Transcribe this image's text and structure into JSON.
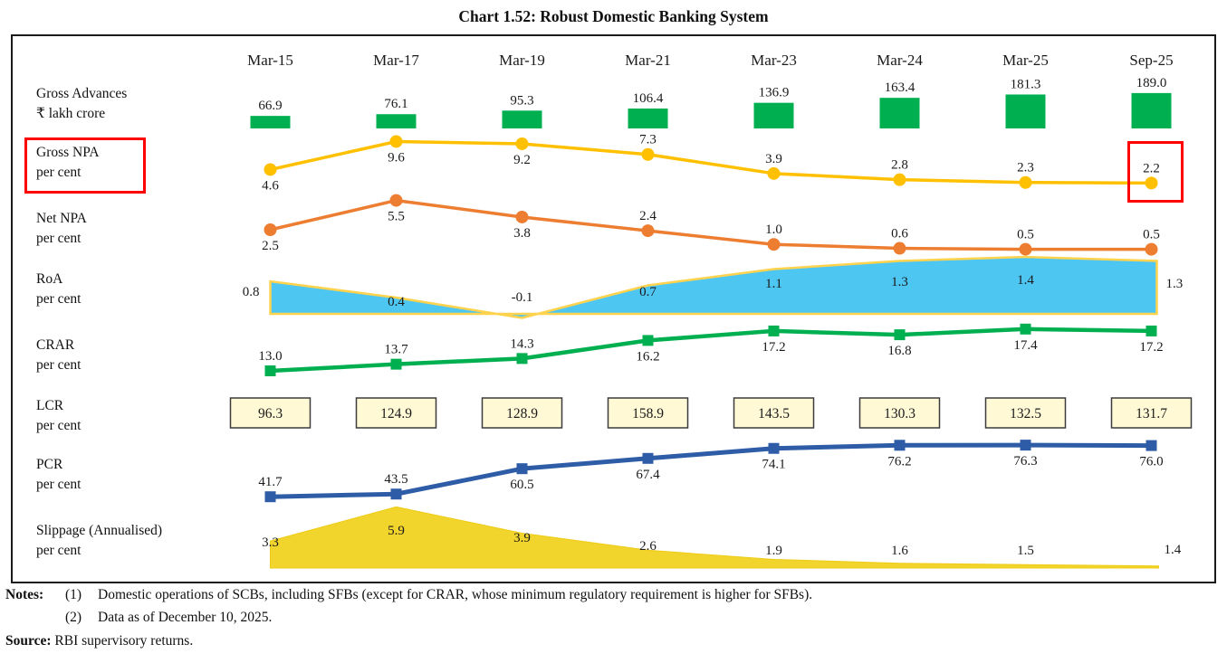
{
  "title": "Chart 1.52: Robust Domestic Banking System",
  "chart_data": {
    "type": "line",
    "categories": [
      "Mar-15",
      "Mar-17",
      "Mar-19",
      "Mar-21",
      "Mar-23",
      "Mar-24",
      "Mar-25",
      "Sep-25"
    ],
    "series": [
      {
        "id": "gross_advances",
        "name": "Gross Advances",
        "unit": "₹ lakh crore",
        "type": "bar",
        "color": "#00B050",
        "values": [
          66.9,
          76.1,
          95.3,
          106.4,
          136.9,
          163.4,
          181.3,
          189.0
        ]
      },
      {
        "id": "gross_npa",
        "name": "Gross NPA",
        "unit": "per cent",
        "type": "line",
        "marker": "circle",
        "color": "#FFC000",
        "values": [
          4.6,
          9.6,
          9.2,
          7.3,
          3.9,
          2.8,
          2.3,
          2.2
        ]
      },
      {
        "id": "net_npa",
        "name": "Net NPA",
        "unit": "per cent",
        "type": "line",
        "marker": "circle",
        "color": "#ED7D31",
        "values": [
          2.5,
          5.5,
          3.8,
          2.4,
          1.0,
          0.6,
          0.5,
          0.5
        ]
      },
      {
        "id": "roa",
        "name": "RoA",
        "unit": "per cent",
        "type": "area",
        "color": "#4EC6F2",
        "stroke": "#FFD34D",
        "values": [
          0.8,
          0.4,
          -0.1,
          0.7,
          1.1,
          1.3,
          1.4,
          1.3
        ]
      },
      {
        "id": "crar",
        "name": "CRAR",
        "unit": "per cent",
        "type": "line",
        "marker": "square",
        "color": "#00B050",
        "values": [
          13.0,
          13.7,
          14.3,
          16.2,
          17.2,
          16.8,
          17.4,
          17.2
        ]
      },
      {
        "id": "lcr",
        "name": "LCR",
        "unit": "per cent",
        "type": "box",
        "color": "#FFF9D6",
        "border": "#3b3b3b",
        "values": [
          96.3,
          124.9,
          128.9,
          158.9,
          143.5,
          130.3,
          132.5,
          131.7
        ]
      },
      {
        "id": "pcr",
        "name": "PCR",
        "unit": "per cent",
        "type": "line",
        "marker": "square",
        "color": "#2E5CA6",
        "values": [
          41.7,
          43.5,
          60.5,
          67.4,
          74.1,
          76.2,
          76.3,
          76.0
        ]
      },
      {
        "id": "slippage",
        "name": "Slippage (Annualised)",
        "unit": "per cent",
        "type": "area",
        "color": "#F1D42C",
        "stroke": "#EFCB15",
        "values": [
          3.3,
          5.9,
          3.9,
          2.6,
          1.9,
          1.6,
          1.5,
          1.4
        ]
      }
    ],
    "annotations": {
      "highlight_color": "#FF0000",
      "highlighted_series": "Gross NPA per cent",
      "highlighted_category": "Sep-25",
      "highlighted_value": "2.2"
    },
    "layout_hints": {
      "grid": false,
      "legend": "none",
      "labels_on_points": true
    }
  },
  "notes": {
    "label": "Notes:",
    "items": [
      {
        "num": "(1)",
        "text": "Domestic operations of SCBs, including SFBs (except for CRAR, whose minimum regulatory requirement is higher for SFBs)."
      },
      {
        "num": "(2)",
        "text": "Data as of December 10, 2025."
      }
    ],
    "source_label": "Source:",
    "source_text": "RBI supervisory returns."
  }
}
